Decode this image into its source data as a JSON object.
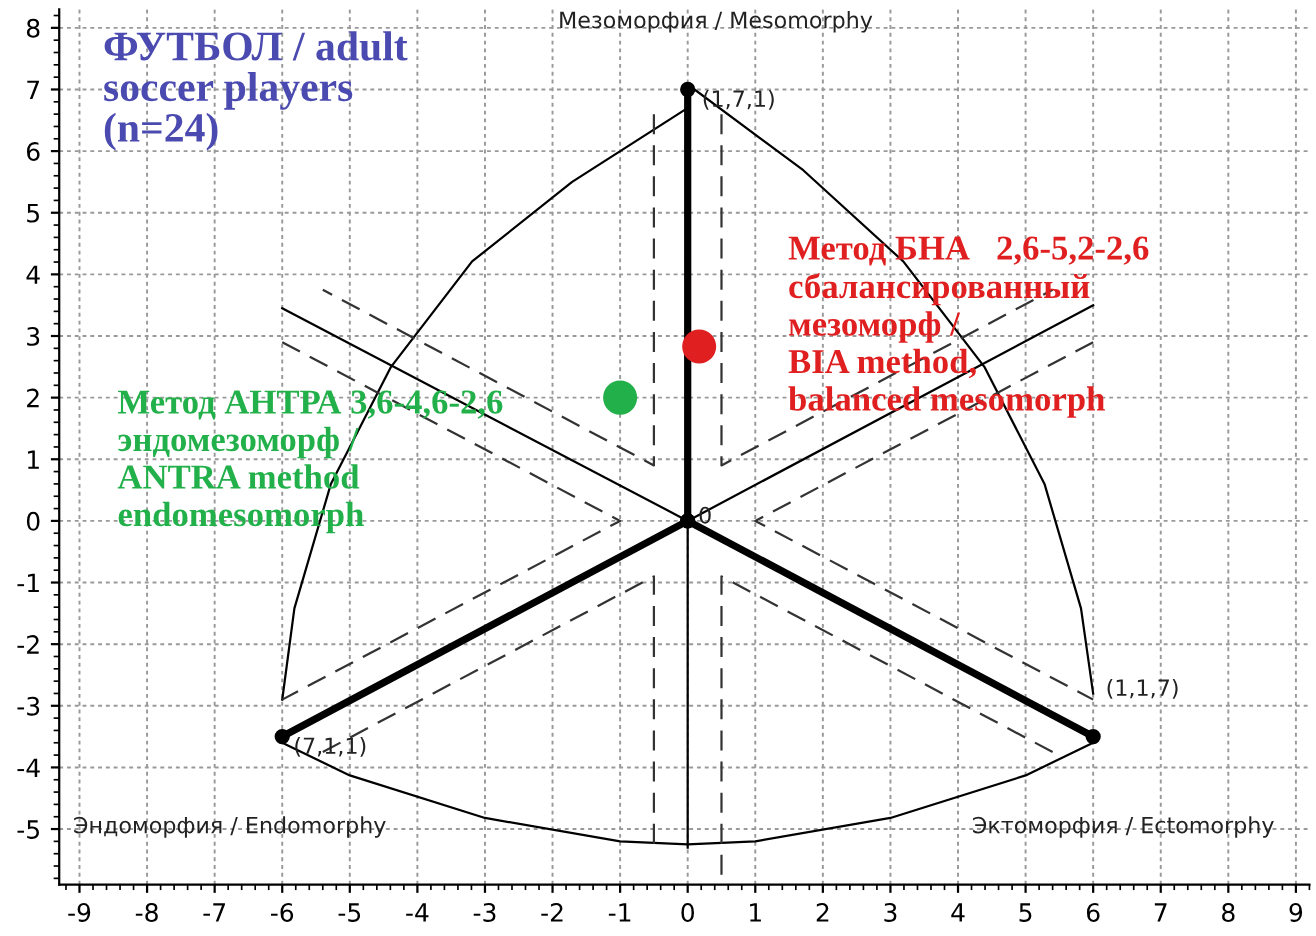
{
  "chart_data": {
    "type": "scatter",
    "title": "ФУТБОЛ / adult\nsoccer players\n(n=24)",
    "xlim": [
      -9.3,
      9.2
    ],
    "ylim": [
      -5.9,
      8.3
    ],
    "xticks": [
      -9,
      -8,
      -7,
      -6,
      -5,
      -4,
      -3,
      -2,
      -1,
      0,
      1,
      2,
      3,
      4,
      5,
      6,
      7,
      8,
      9
    ],
    "yticks": [
      -5,
      -4,
      -3,
      -2,
      -1,
      0,
      1,
      2,
      3,
      4,
      5,
      6,
      7,
      8
    ],
    "grid": true,
    "series": [
      {
        "type": "line",
        "line_style": "solid",
        "marker": "circle",
        "color": "#000000",
        "x": [
          0,
          0,
          -6
        ],
        "values": [
          7,
          0,
          -3.5
        ]
      },
      {
        "type": "line",
        "line_style": "solid",
        "marker": "circle",
        "color": "#000000",
        "x": [
          0,
          6
        ],
        "values": [
          0,
          -3.5
        ]
      },
      {
        "type": "line",
        "line_style": "solid",
        "color": "#000000",
        "x": [
          0,
          0
        ],
        "values": [
          0,
          -5.3
        ]
      },
      {
        "type": "line",
        "line_style": "solid",
        "color": "#000000",
        "x": [
          -6,
          0,
          6
        ],
        "values": [
          3.45,
          0,
          3.5
        ]
      },
      {
        "type": "line",
        "line_style": "solid",
        "color": "#000000",
        "x": [
          -6,
          -5.82,
          -5.28,
          -4.39,
          -3.19,
          -1.71,
          0
        ],
        "values": [
          -2.9,
          -1.42,
          0.6,
          2.5,
          4.21,
          5.5,
          6.7
        ]
      },
      {
        "type": "line",
        "line_style": "solid",
        "color": "#000000",
        "x": [
          0.1,
          1.71,
          3.19,
          4.39,
          5.28,
          5.82,
          6
        ],
        "values": [
          7,
          5.69,
          4.21,
          2.5,
          0.6,
          -1.42,
          -2.8
        ]
      },
      {
        "type": "line",
        "line_style": "solid",
        "color": "#000000",
        "x": [
          -6,
          -5,
          -3,
          -1,
          0,
          1,
          3,
          5,
          6
        ],
        "values": [
          -3.6,
          -4.13,
          -4.82,
          -5.2,
          -5.25,
          -5.2,
          -4.82,
          -4.13,
          -3.6
        ]
      },
      {
        "type": "line",
        "line_style": "dashed",
        "color": "#333333",
        "x": [
          -0.5,
          -0.5,
          -5.4
        ],
        "values": [
          6.6,
          0.9,
          3.75
        ]
      },
      {
        "type": "line",
        "line_style": "dashed",
        "color": "#333333",
        "x": [
          -6,
          -1,
          -6
        ],
        "values": [
          2.9,
          0,
          -2.9
        ]
      },
      {
        "type": "line",
        "line_style": "dashed",
        "color": "#333333",
        "x": [
          -5.4,
          -0.5,
          -0.5
        ],
        "values": [
          -3.75,
          -0.9,
          -5.3
        ]
      },
      {
        "type": "line",
        "line_style": "dashed",
        "color": "#333333",
        "x": [
          0.5,
          0.5,
          5.4
        ],
        "values": [
          6.6,
          0.9,
          3.75
        ]
      },
      {
        "type": "line",
        "line_style": "dashed",
        "color": "#333333",
        "x": [
          6,
          1,
          6
        ],
        "values": [
          2.9,
          0,
          -2.9
        ]
      },
      {
        "type": "line",
        "line_style": "dashed",
        "color": "#333333",
        "x": [
          5.4,
          0.5,
          0.5
        ],
        "values": [
          -3.75,
          -0.9,
          -5.9
        ]
      },
      {
        "name": "Метод БНА   2,6-5,2-2,6\nсбалансированный\nмезоморф /\nBIA method,\nbalanced mesomorph",
        "marker": "circle",
        "color": "#e02020",
        "x": [
          0.17
        ],
        "values": [
          2.83
        ]
      },
      {
        "name": "Метод АНТРА 3,6-4,6-2,6\nэндомезоморф /\nANTRA method\nendomesomorph",
        "marker": "circle",
        "color": "#22b04a",
        "x": [
          -1.0
        ],
        "values": [
          2.0
        ]
      }
    ],
    "annotations": [
      "Мезоморфия / Mesomorphy",
      "(1,7,1)",
      "0",
      {
        "text": "(7,1,1)",
        "x": -6,
        "y": -3.5
      },
      "(1,1,7)",
      "Эндоморфия / Endomorphy",
      "Эктоморфия / Ectomorphy"
    ]
  }
}
